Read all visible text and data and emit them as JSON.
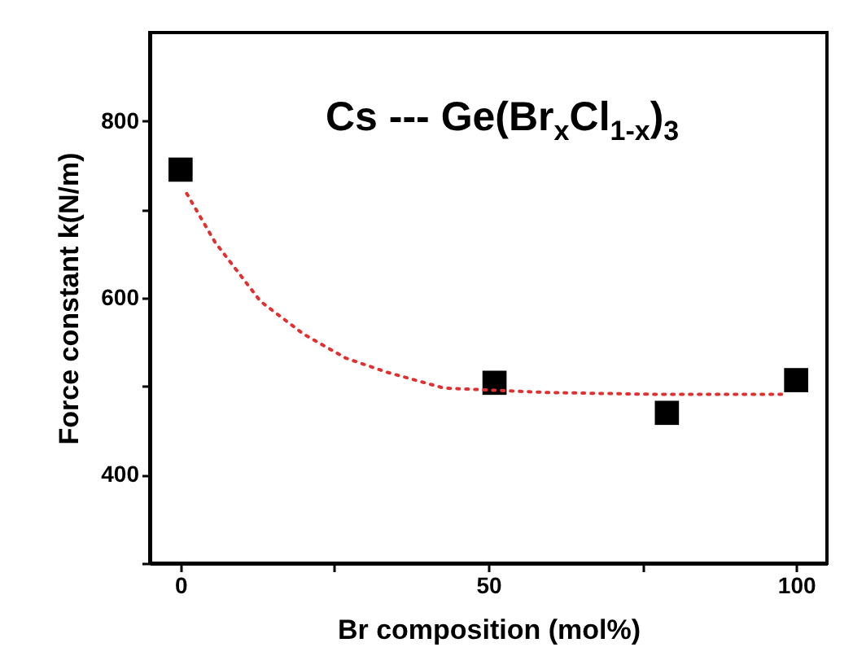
{
  "chart_data": {
    "type": "scatter",
    "xlabel": "Br composition (mol%)",
    "ylabel": "Force constant k(N/m)",
    "annotations": [
      "Cs --- Ge(Br$_{x}$Cl$_{1-x}$)$_{3}$"
    ],
    "xlim": [
      -5,
      105
    ],
    "xticks": [
      0,
      {
        "value": 25,
        "label": null
      },
      50,
      {
        "value": 75,
        "label": null
      },
      100
    ],
    "ylim": [
      300,
      900
    ],
    "yticks": [
      {
        "value": 300,
        "label": null
      },
      400,
      {
        "value": 500,
        "label": null
      },
      600,
      {
        "value": 700,
        "label": null
      },
      800
    ],
    "grid": false,
    "series": [
      {
        "color": "#000000",
        "marker": "square",
        "x": [
          0,
          51,
          79,
          100
        ],
        "values": [
          745,
          504,
          470,
          507
        ]
      },
      {
        "type": "line",
        "color": "#e03030",
        "line_style": "dotted",
        "marker": "none",
        "x": [
          1,
          5.6,
          13,
          20,
          26.8,
          33.5,
          42.8,
          59.6,
          76.4,
          98.4
        ],
        "values": [
          718,
          663,
          596,
          559,
          532,
          516,
          498,
          493,
          491,
          491
        ]
      }
    ]
  }
}
